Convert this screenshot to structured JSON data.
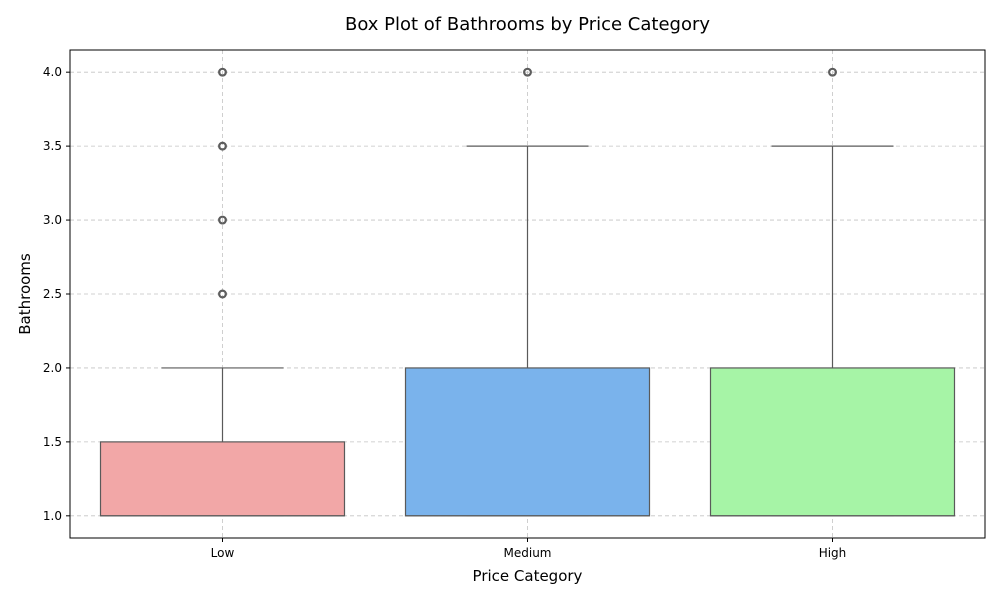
{
  "chart_data": {
    "type": "box",
    "title": "Box Plot of Bathrooms by Price Category",
    "xlabel": "Price Category",
    "ylabel": "Bathrooms",
    "categories": [
      "Low",
      "Medium",
      "High"
    ],
    "ylim": [
      0.85,
      4.15
    ],
    "yticks": [
      1.0,
      1.5,
      2.0,
      2.5,
      3.0,
      3.5,
      4.0
    ],
    "ytick_labels": [
      "1.0",
      "1.5",
      "2.0",
      "2.5",
      "3.0",
      "3.5",
      "4.0"
    ],
    "grid": true,
    "boxes": [
      {
        "category": "Low",
        "whisker_low": 1.0,
        "q1": 1.0,
        "median": 1.0,
        "q3": 1.5,
        "whisker_high": 2.0,
        "outliers": [
          2.5,
          3.0,
          3.5,
          4.0
        ],
        "color": "#f2a7a7"
      },
      {
        "category": "Medium",
        "whisker_low": 1.0,
        "q1": 1.0,
        "median": 1.0,
        "q3": 2.0,
        "whisker_high": 3.5,
        "outliers": [
          4.0
        ],
        "color": "#7ab3ec"
      },
      {
        "category": "High",
        "whisker_low": 1.0,
        "q1": 1.0,
        "median": 1.0,
        "q3": 2.0,
        "whisker_high": 3.5,
        "outliers": [
          4.0
        ],
        "color": "#a6f4a6"
      }
    ]
  }
}
